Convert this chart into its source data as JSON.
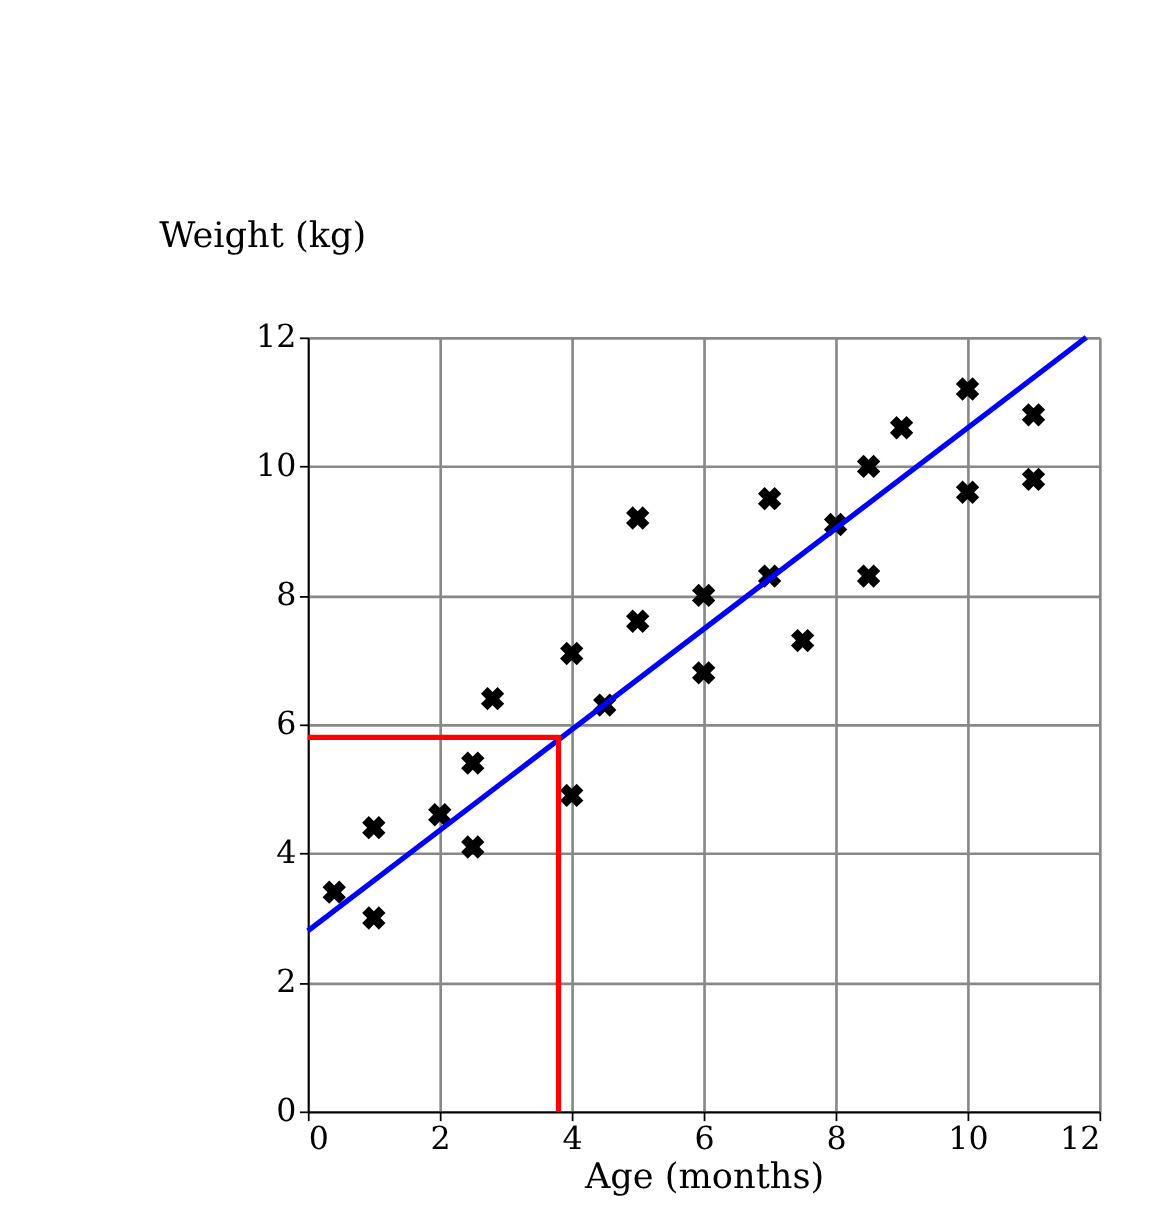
{
  "chart_data": {
    "type": "scatter",
    "xlabel": "Age (months)",
    "ylabel": "Weight (kg)",
    "xlim": [
      0,
      12
    ],
    "ylim": [
      0,
      12
    ],
    "xticks": [
      0,
      2,
      4,
      6,
      8,
      10,
      12
    ],
    "yticks": [
      0,
      2,
      4,
      6,
      8,
      10,
      12
    ],
    "grid": true,
    "marker": "cross",
    "series": [
      {
        "color": "#000000",
        "x": [
          0.4,
          1,
          1,
          2,
          2.5,
          2.5,
          2.8,
          4,
          4,
          4.5,
          5,
          5,
          6,
          6,
          7,
          7,
          7.5,
          8,
          8.5,
          8.5,
          9,
          10,
          10,
          11,
          11
        ],
        "values": [
          3.4,
          4.4,
          3.0,
          4.6,
          5.4,
          4.1,
          6.4,
          7.1,
          4.9,
          6.3,
          9.2,
          7.6,
          8.0,
          6.8,
          9.5,
          8.3,
          7.3,
          9.1,
          10.0,
          8.3,
          10.6,
          11.2,
          9.6,
          10.8,
          9.8
        ]
      },
      {
        "type": "line",
        "marker": "none",
        "color": "#0000ff",
        "x": [
          0,
          11.8
        ],
        "values": [
          2.8,
          12
        ]
      },
      {
        "type": "line",
        "marker": "none",
        "color": "#ff0000",
        "x": [
          0,
          3.8,
          3.8
        ],
        "values": [
          5.8,
          5.8,
          0
        ]
      }
    ]
  }
}
